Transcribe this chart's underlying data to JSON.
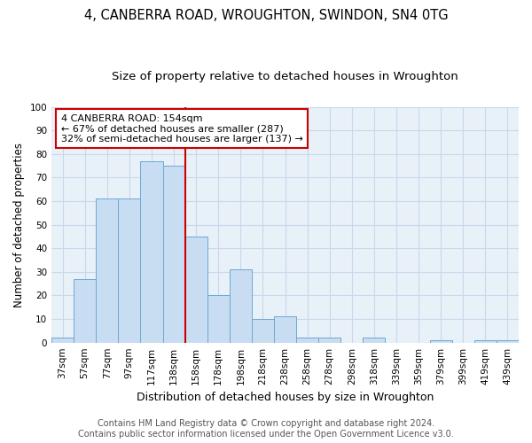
{
  "title1": "4, CANBERRA ROAD, WROUGHTON, SWINDON, SN4 0TG",
  "title2": "Size of property relative to detached houses in Wroughton",
  "xlabel": "Distribution of detached houses by size in Wroughton",
  "ylabel": "Number of detached properties",
  "bar_labels": [
    "37sqm",
    "57sqm",
    "77sqm",
    "97sqm",
    "117sqm",
    "138sqm",
    "158sqm",
    "178sqm",
    "198sqm",
    "218sqm",
    "238sqm",
    "258sqm",
    "278sqm",
    "298sqm",
    "318sqm",
    "339sqm",
    "359sqm",
    "379sqm",
    "399sqm",
    "419sqm",
    "439sqm"
  ],
  "bar_values": [
    2,
    27,
    61,
    61,
    77,
    75,
    45,
    20,
    31,
    10,
    11,
    2,
    2,
    0,
    2,
    0,
    0,
    1,
    0,
    1,
    1
  ],
  "bar_color": "#c9ddf2",
  "bar_edge_color": "#6aaad4",
  "grid_color": "#c8d8ec",
  "background_color": "#e8f0f8",
  "vline_x": 6.0,
  "vline_color": "#cc0000",
  "annotation_lines": [
    "4 CANBERRA ROAD: 154sqm",
    "← 67% of detached houses are smaller (287)",
    "32% of semi-detached houses are larger (137) →"
  ],
  "annotation_box_color": "#ffffff",
  "annotation_box_edge": "#cc0000",
  "ylim": [
    0,
    100
  ],
  "yticks": [
    0,
    10,
    20,
    30,
    40,
    50,
    60,
    70,
    80,
    90,
    100
  ],
  "footer1": "Contains HM Land Registry data © Crown copyright and database right 2024.",
  "footer2": "Contains public sector information licensed under the Open Government Licence v3.0.",
  "title1_fontsize": 10.5,
  "title2_fontsize": 9.5,
  "tick_fontsize": 7.5,
  "ylabel_fontsize": 8.5,
  "xlabel_fontsize": 9,
  "annotation_fontsize": 8,
  "footer_fontsize": 7
}
